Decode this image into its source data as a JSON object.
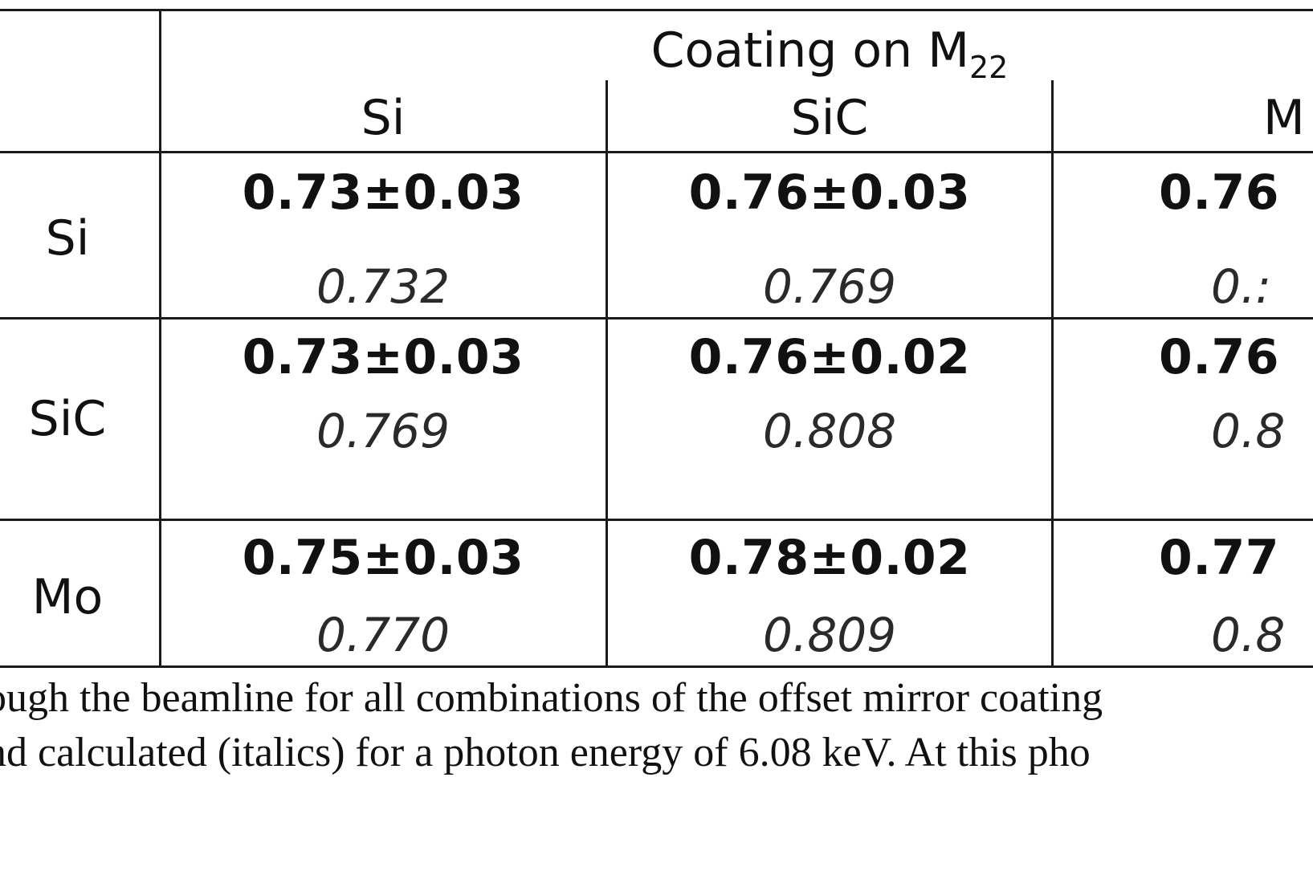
{
  "table": {
    "group_header": {
      "text": "Coating on M",
      "subscript": "22"
    },
    "column_headers": [
      "Si",
      "SiC",
      "M"
    ],
    "rows": [
      {
        "label": "Si",
        "cells": [
          {
            "measured": "0.73±0.03",
            "calculated": "0.732"
          },
          {
            "measured": "0.76±0.03",
            "calculated": "0.769"
          },
          {
            "measured": "0.76",
            "calculated": "0.:"
          }
        ]
      },
      {
        "label": "SiC",
        "cells": [
          {
            "measured": "0.73±0.03",
            "calculated": "0.769"
          },
          {
            "measured": "0.76±0.02",
            "calculated": "0.808"
          },
          {
            "measured": "0.76",
            "calculated": "0.8"
          }
        ]
      },
      {
        "label": "Mo",
        "cells": [
          {
            "measured": "0.75±0.03",
            "calculated": "0.770"
          },
          {
            "measured": "0.78±0.02",
            "calculated": "0.809"
          },
          {
            "measured": "0.77",
            "calculated": "0.8"
          }
        ]
      }
    ]
  },
  "caption": {
    "line1": "ough the beamline for all combinations of the offset mirror coating",
    "line2": "nd calculated (italics) for a photon energy of 6.08 keV. At this pho"
  }
}
